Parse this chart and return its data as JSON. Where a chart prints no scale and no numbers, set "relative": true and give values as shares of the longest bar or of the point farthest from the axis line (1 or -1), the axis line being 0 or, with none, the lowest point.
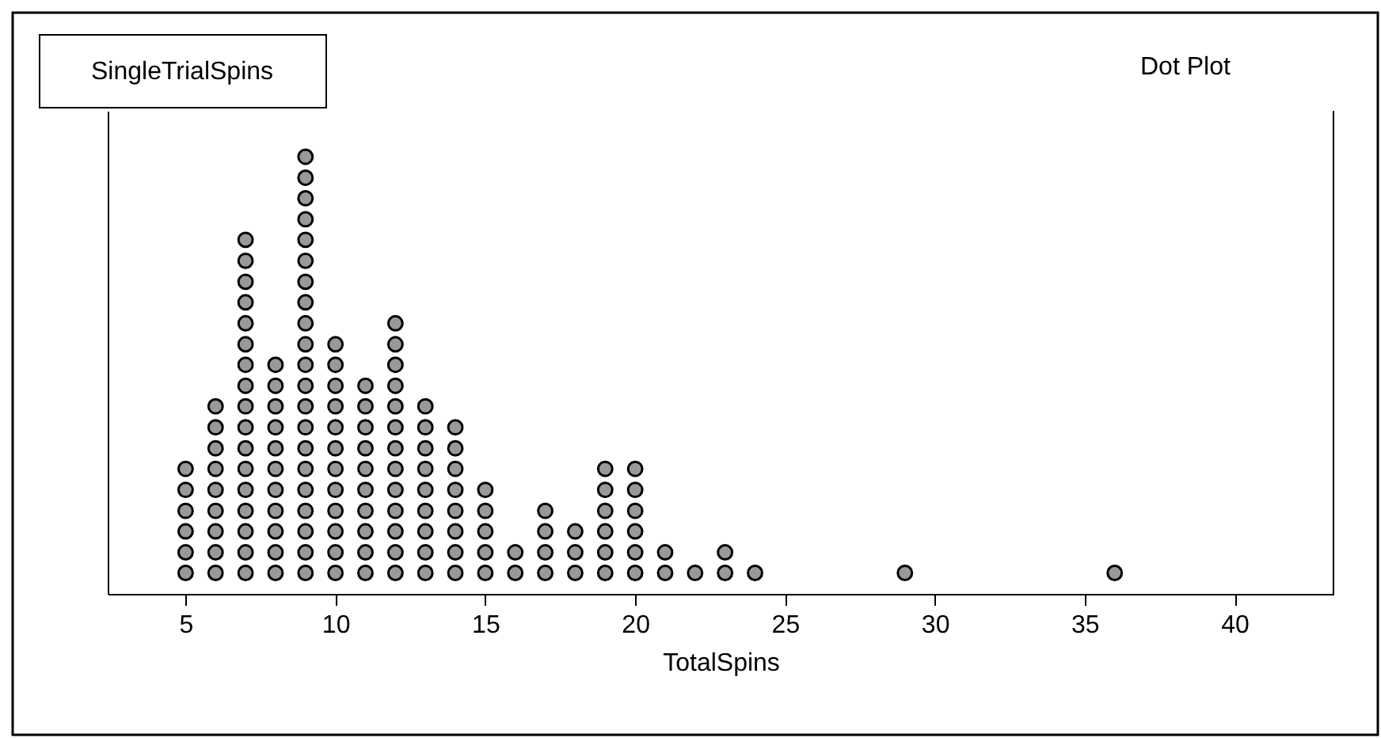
{
  "chart_data": {
    "type": "scatter",
    "title": "SingleTrialSpins",
    "xlabel": "TotalSpins",
    "annotations": [
      "Dot Plot"
    ],
    "x": [
      5,
      5,
      5,
      5,
      5,
      5,
      6,
      6,
      6,
      6,
      6,
      6,
      6,
      6,
      6,
      7,
      7,
      7,
      7,
      7,
      7,
      7,
      7,
      7,
      7,
      7,
      7,
      7,
      7,
      7,
      7,
      7,
      8,
      8,
      8,
      8,
      8,
      8,
      8,
      8,
      8,
      8,
      8,
      9,
      9,
      9,
      9,
      9,
      9,
      9,
      9,
      9,
      9,
      9,
      9,
      9,
      9,
      9,
      9,
      9,
      9,
      9,
      9,
      9,
      10,
      10,
      10,
      10,
      10,
      10,
      10,
      10,
      10,
      10,
      10,
      10,
      11,
      11,
      11,
      11,
      11,
      11,
      11,
      11,
      11,
      11,
      12,
      12,
      12,
      12,
      12,
      12,
      12,
      12,
      12,
      12,
      12,
      12,
      12,
      13,
      13,
      13,
      13,
      13,
      13,
      13,
      13,
      13,
      14,
      14,
      14,
      14,
      14,
      14,
      14,
      14,
      15,
      15,
      15,
      15,
      15,
      16,
      16,
      17,
      17,
      17,
      17,
      18,
      18,
      18,
      19,
      19,
      19,
      19,
      19,
      19,
      20,
      20,
      20,
      20,
      20,
      20,
      21,
      21,
      22,
      23,
      23,
      24,
      29,
      36
    ],
    "values": [
      0.048,
      0.095,
      0.143,
      0.19,
      0.238,
      0.286,
      0.048,
      0.095,
      0.143,
      0.19,
      0.238,
      0.286,
      0.333,
      0.381,
      0.429,
      0.048,
      0.095,
      0.143,
      0.19,
      0.238,
      0.286,
      0.333,
      0.381,
      0.429,
      0.476,
      0.524,
      0.571,
      0.619,
      0.667,
      0.714,
      0.762,
      0.81,
      0.048,
      0.095,
      0.143,
      0.19,
      0.238,
      0.286,
      0.333,
      0.381,
      0.429,
      0.476,
      0.524,
      0.048,
      0.095,
      0.143,
      0.19,
      0.238,
      0.286,
      0.333,
      0.381,
      0.429,
      0.476,
      0.524,
      0.571,
      0.619,
      0.667,
      0.714,
      0.762,
      0.81,
      0.857,
      0.905,
      0.952,
      1,
      0.048,
      0.095,
      0.143,
      0.19,
      0.238,
      0.286,
      0.333,
      0.381,
      0.429,
      0.476,
      0.524,
      0.571,
      0.048,
      0.095,
      0.143,
      0.19,
      0.238,
      0.286,
      0.333,
      0.381,
      0.429,
      0.476,
      0.048,
      0.095,
      0.143,
      0.19,
      0.238,
      0.286,
      0.333,
      0.381,
      0.429,
      0.476,
      0.524,
      0.571,
      0.619,
      0.048,
      0.095,
      0.143,
      0.19,
      0.238,
      0.286,
      0.333,
      0.381,
      0.429,
      0.048,
      0.095,
      0.143,
      0.19,
      0.238,
      0.286,
      0.333,
      0.381,
      0.048,
      0.095,
      0.143,
      0.19,
      0.238,
      0.048,
      0.095,
      0.048,
      0.095,
      0.143,
      0.19,
      0.048,
      0.095,
      0.143,
      0.048,
      0.095,
      0.143,
      0.19,
      0.238,
      0.286,
      0.048,
      0.095,
      0.143,
      0.19,
      0.238,
      0.286,
      0.048,
      0.095,
      0.048,
      0.048,
      0.095,
      0.048,
      0.048,
      0.048
    ],
    "relative": true,
    "color": "#999999",
    "marker": "circle",
    "xlim": [
      2.4,
      43.3
    ],
    "xticks": [
      5,
      10,
      15,
      20,
      25,
      30,
      35,
      40
    ],
    "tick_labels": "x",
    "grid": false
  }
}
